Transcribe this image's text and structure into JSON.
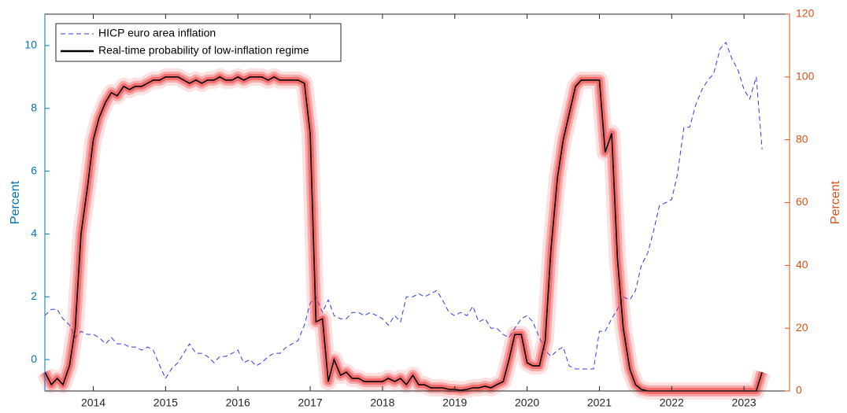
{
  "chart_data": {
    "type": "line",
    "x": [
      2013.33,
      2013.42,
      2013.5,
      2013.58,
      2013.67,
      2013.75,
      2013.83,
      2013.92,
      2014,
      2014.08,
      2014.17,
      2014.25,
      2014.33,
      2014.42,
      2014.5,
      2014.58,
      2014.67,
      2014.75,
      2014.83,
      2014.92,
      2015,
      2015.08,
      2015.17,
      2015.25,
      2015.33,
      2015.42,
      2015.5,
      2015.58,
      2015.67,
      2015.75,
      2015.83,
      2015.92,
      2016,
      2016.08,
      2016.17,
      2016.25,
      2016.33,
      2016.42,
      2016.5,
      2016.58,
      2016.67,
      2016.75,
      2016.83,
      2016.92,
      2017,
      2017.08,
      2017.17,
      2017.25,
      2017.33,
      2017.42,
      2017.5,
      2017.58,
      2017.67,
      2017.75,
      2017.83,
      2017.92,
      2018,
      2018.08,
      2018.17,
      2018.25,
      2018.33,
      2018.42,
      2018.5,
      2018.58,
      2018.67,
      2018.75,
      2018.83,
      2018.92,
      2019,
      2019.08,
      2019.17,
      2019.25,
      2019.33,
      2019.42,
      2019.5,
      2019.58,
      2019.67,
      2019.75,
      2019.83,
      2019.92,
      2020,
      2020.08,
      2020.17,
      2020.25,
      2020.33,
      2020.42,
      2020.5,
      2020.58,
      2020.67,
      2020.75,
      2020.83,
      2020.92,
      2021,
      2021.08,
      2021.17,
      2021.25,
      2021.33,
      2021.42,
      2021.5,
      2021.58,
      2021.67,
      2021.75,
      2021.83,
      2021.92,
      2022,
      2022.08,
      2022.17,
      2022.25,
      2022.33,
      2022.42,
      2022.5,
      2022.58,
      2022.67,
      2022.75,
      2022.83,
      2022.92,
      2023,
      2023.08,
      2023.17,
      2023.25
    ],
    "series": [
      {
        "name": "HICP euro area inflation",
        "color": "#2b3bf0",
        "line_style": "dashed",
        "axis": "y",
        "values": [
          1.4,
          1.6,
          1.6,
          1.3,
          1.1,
          0.7,
          0.9,
          0.8,
          0.8,
          0.7,
          0.5,
          0.7,
          0.5,
          0.5,
          0.4,
          0.4,
          0.3,
          0.4,
          0.3,
          -0.2,
          -0.6,
          -0.3,
          -0.1,
          0.2,
          0.5,
          0.2,
          0.2,
          0.1,
          -0.1,
          0.1,
          0.1,
          0.2,
          0.3,
          -0.1,
          0.0,
          -0.2,
          -0.1,
          0.1,
          0.2,
          0.2,
          0.4,
          0.5,
          0.6,
          1.1,
          1.8,
          2.0,
          1.5,
          1.9,
          1.4,
          1.3,
          1.3,
          1.5,
          1.5,
          1.4,
          1.5,
          1.4,
          1.3,
          1.1,
          1.4,
          1.2,
          2.0,
          2.0,
          2.1,
          2.0,
          2.1,
          2.2,
          1.9,
          1.5,
          1.4,
          1.5,
          1.4,
          1.7,
          1.2,
          1.3,
          1.0,
          1.0,
          0.8,
          0.7,
          1.0,
          1.3,
          1.4,
          1.2,
          0.7,
          0.3,
          0.1,
          0.3,
          0.4,
          -0.2,
          -0.3,
          -0.3,
          -0.3,
          -0.3,
          0.9,
          0.9,
          1.3,
          1.6,
          2.0,
          1.9,
          2.2,
          3.0,
          3.4,
          4.1,
          4.9,
          5.0,
          5.1,
          5.9,
          7.4,
          7.4,
          8.1,
          8.6,
          8.9,
          9.1,
          9.9,
          10.1,
          9.6,
          9.2,
          8.6,
          8.3,
          9.0,
          6.7
        ]
      },
      {
        "name": "Real-time probability of low-inflation regime",
        "color": "#000000",
        "line_style": "solid",
        "axis": "y2",
        "band_color": "#f03030",
        "values": [
          6,
          2,
          4,
          2,
          8,
          20,
          50,
          65,
          80,
          87,
          92,
          95,
          94,
          97,
          96,
          97,
          97,
          98,
          99,
          99,
          100,
          100,
          100,
          99,
          98,
          99,
          98,
          99,
          99,
          100,
          99,
          99,
          100,
          99,
          100,
          100,
          100,
          99,
          100,
          99,
          99,
          99,
          99,
          98,
          82,
          22,
          23,
          3,
          10,
          5,
          6,
          4,
          4,
          3,
          3,
          3,
          3,
          4,
          3,
          4,
          2,
          5,
          2,
          2,
          1,
          1,
          1,
          0.5,
          0.5,
          0.2,
          0.5,
          1,
          1,
          1.5,
          1,
          2,
          3,
          10,
          18,
          18,
          9,
          8,
          8,
          16,
          45,
          68,
          80,
          88,
          97,
          99,
          99,
          99,
          99,
          76,
          82,
          42,
          20,
          7,
          2,
          0.5,
          0,
          0,
          0,
          0,
          0,
          0,
          0,
          0,
          0,
          0,
          0,
          0,
          0,
          0,
          0,
          0,
          0,
          0,
          0,
          6
        ]
      }
    ],
    "xlim": [
      2013.33,
      2023.63
    ],
    "xticks": [
      2014,
      2015,
      2016,
      2017,
      2018,
      2019,
      2020,
      2021,
      2022,
      2023
    ],
    "ylim": [
      -1,
      11
    ],
    "yticks": [
      0,
      2,
      4,
      6,
      8,
      10
    ],
    "ylabel": "Percent",
    "y_color": "#0072bd",
    "y2lim": [
      0,
      120
    ],
    "y2ticks": [
      0,
      20,
      40,
      60,
      80,
      100,
      120
    ],
    "y2label": "Percent",
    "y2_color": "#d95319",
    "legend": "upper left",
    "grid": false
  }
}
